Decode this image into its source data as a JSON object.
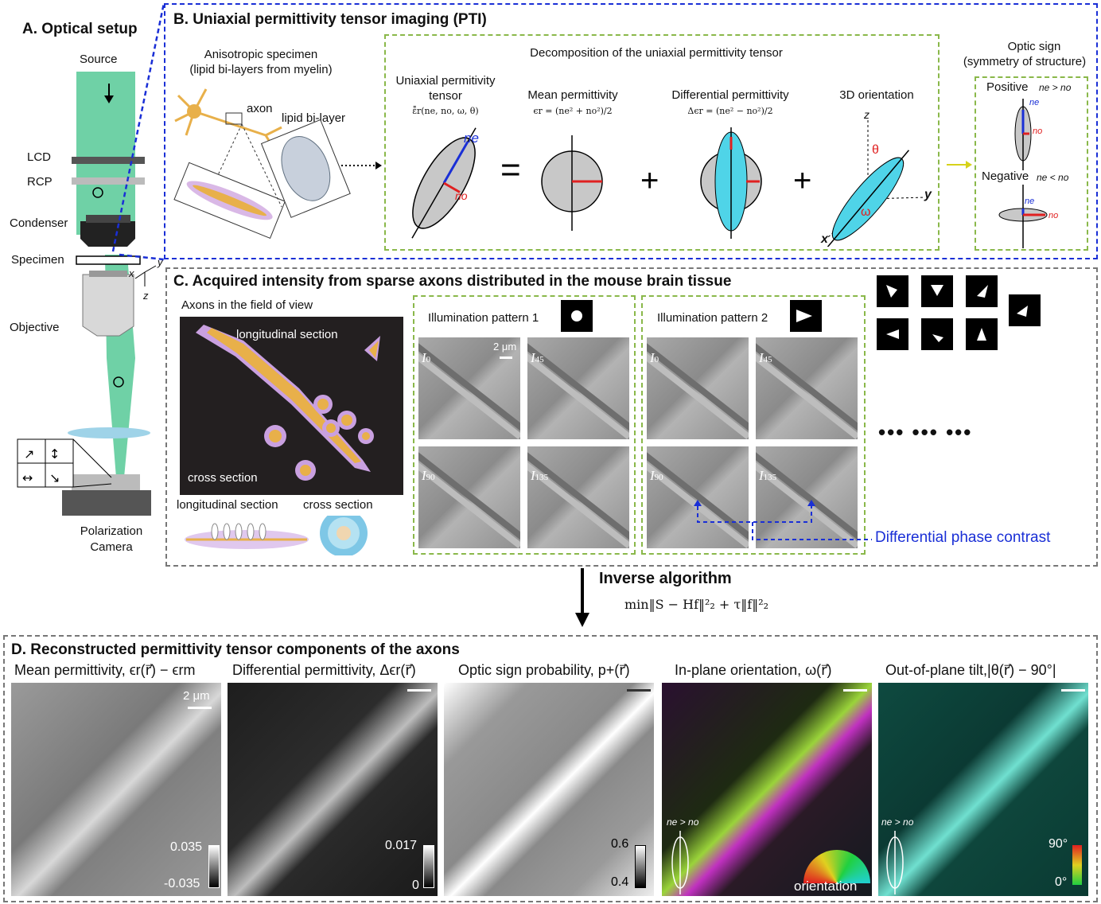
{
  "panelA": {
    "title": "A. Optical setup",
    "source": "Source",
    "lcd": "LCD",
    "rcp": "RCP",
    "condenser": "Condenser",
    "specimen": "Specimen",
    "objective": "Objective",
    "camera_line1": "Polarization",
    "camera_line2": "Camera",
    "axis_x": "x",
    "axis_y": "y",
    "axis_z": "z"
  },
  "panelB": {
    "title": "B. Uniaxial permittivity tensor imaging (PTI)",
    "specimen_line1": "Anisotropic specimen",
    "specimen_line2": "(lipid bi-layers from myelin)",
    "axon": "axon",
    "bilayer": "lipid bi-layer",
    "decomposition": "Decomposition of the uniaxial permittivity tensor",
    "tensor_line1": "Uniaxial permitivity",
    "tensor_line2": "tensor",
    "tensor_formula": "ε̄̄r(ne, no, ω, θ)",
    "mean": "Mean permittivity",
    "mean_formula": "ϵr = (ne² + no²)/2",
    "diff": "Differential permittivity",
    "diff_formula": "Δϵr = (ne² − no²)/2",
    "orient": "3D orientation",
    "ne": "ne",
    "no": "no",
    "theta": "θ",
    "omega": "ω",
    "ax_z": "z",
    "ax_y": "y",
    "ax_x": "x",
    "equals": "=",
    "plus": "+",
    "optic_line1": "Optic sign",
    "optic_line2": "(symmetry of structure)",
    "positive": "Positive",
    "positive_rel": "ne > no",
    "negative": "Negative",
    "negative_rel": "ne < no"
  },
  "panelC": {
    "title": "C. Acquired intensity from sparse axons distributed in the mouse brain tissue",
    "fov": "Axons in the field of view",
    "long_section": "longitudinal section",
    "cross_section": "cross section",
    "long_section_bottom": "longitudinal section",
    "cross_section_bottom": "cross section",
    "pattern1": "Illumination pattern 1",
    "pattern2": "Illumination pattern 2",
    "scale": "2 μm",
    "i0": "I",
    "i0_sub": "0",
    "i45": "I",
    "i45_sub": "45",
    "i90": "I",
    "i90_sub": "90",
    "i135": "I",
    "i135_sub": "135",
    "dots": "•••  •••  •••",
    "dpc": "Differential phase contrast"
  },
  "inverse": {
    "title": "Inverse algorithm",
    "formula": "min‖S − Hf‖²₂ + τ‖f‖²₂"
  },
  "panelD": {
    "title": "D. Reconstructed permittivity tensor components of the axons",
    "mean_title": "Mean permittivity, ϵr(r⃗) − ϵrm",
    "diff_title": "Differential permittivity, Δϵr(r⃗)",
    "sign_title": "Optic sign probability, p+(r⃗)",
    "inplane_title": "In-plane orientation, ω(r⃗)",
    "tilt_title": "Out-of-plane tilt,|θ(r⃗) − 90°|",
    "scale": "2 μm",
    "mean_max": "0.035",
    "mean_min": "-0.035",
    "diff_max": "0.017",
    "diff_min": "0",
    "sign_max": "0.6",
    "sign_min": "0.4",
    "rel1": "ne > no",
    "rel2": "ne > no",
    "orientation": "orientation",
    "tilt_max": "90°",
    "tilt_min": "0°"
  }
}
